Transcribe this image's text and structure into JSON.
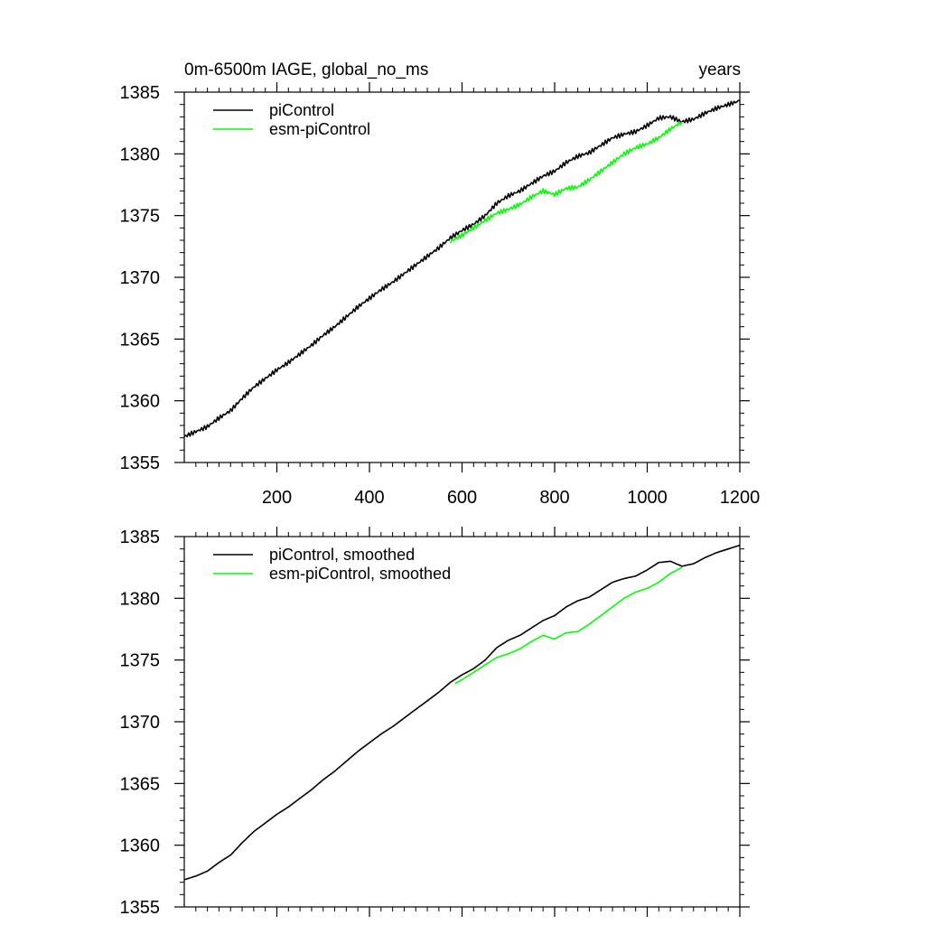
{
  "chart_data": [
    {
      "type": "line",
      "title": "0m-6500m IAGE, global_no_ms",
      "title_right": "years",
      "xlabel": "",
      "ylabel": "",
      "xlim": [
        0,
        1200
      ],
      "ylim": [
        1355,
        1385
      ],
      "x_ticks": [
        200,
        400,
        600,
        800,
        1000,
        1200
      ],
      "y_ticks": [
        1355,
        1360,
        1365,
        1370,
        1375,
        1380,
        1385
      ],
      "grid": false,
      "legend_position": "top-left",
      "series": [
        {
          "name": "piControl",
          "color": "#000000",
          "smoothed": false,
          "x": [
            0,
            25,
            50,
            75,
            100,
            125,
            150,
            175,
            200,
            225,
            250,
            275,
            300,
            325,
            350,
            375,
            400,
            425,
            450,
            475,
            500,
            525,
            550,
            575,
            600,
            625,
            650,
            675,
            700,
            725,
            750,
            775,
            800,
            825,
            850,
            875,
            900,
            925,
            950,
            975,
            1000,
            1025,
            1050,
            1075,
            1100,
            1125,
            1150,
            1175,
            1200
          ],
          "y": [
            1357.1,
            1357.5,
            1357.9,
            1358.6,
            1359.2,
            1360.2,
            1361.1,
            1361.8,
            1362.5,
            1363.1,
            1363.8,
            1364.5,
            1365.3,
            1366.0,
            1366.8,
            1367.6,
            1368.3,
            1369.0,
            1369.6,
            1370.3,
            1371.0,
            1371.7,
            1372.4,
            1373.2,
            1373.8,
            1374.3,
            1375.0,
            1376.0,
            1376.6,
            1377.0,
            1377.6,
            1378.2,
            1378.6,
            1379.3,
            1379.8,
            1380.1,
            1380.7,
            1381.3,
            1381.6,
            1381.8,
            1382.3,
            1382.9,
            1383.0,
            1382.6,
            1382.8,
            1383.3,
            1383.7,
            1384.0,
            1384.3
          ]
        },
        {
          "name": "esm-piControl",
          "color": "#00ff00",
          "smoothed": false,
          "x": [
            575,
            600,
            625,
            650,
            675,
            700,
            725,
            750,
            775,
            800,
            825,
            850,
            875,
            900,
            925,
            950,
            975,
            1000,
            1025,
            1050,
            1075
          ],
          "y": [
            1372.9,
            1373.4,
            1374.0,
            1374.6,
            1375.2,
            1375.5,
            1375.9,
            1376.5,
            1377.0,
            1376.7,
            1377.2,
            1377.3,
            1377.9,
            1378.6,
            1379.3,
            1380.0,
            1380.5,
            1380.8,
            1381.3,
            1382.0,
            1382.6
          ]
        }
      ]
    },
    {
      "type": "line",
      "title": "",
      "xlabel": "",
      "ylabel": "",
      "xlim": [
        0,
        1200
      ],
      "ylim": [
        1355,
        1385
      ],
      "x_ticks": [
        200,
        400,
        600,
        800,
        1000,
        1200
      ],
      "y_ticks": [
        1355,
        1360,
        1365,
        1370,
        1375,
        1380,
        1385
      ],
      "grid": false,
      "legend_position": "top-left",
      "series": [
        {
          "name": "piControl, smoothed",
          "color": "#000000",
          "smoothed": true,
          "x": [
            0,
            25,
            50,
            75,
            100,
            125,
            150,
            175,
            200,
            225,
            250,
            275,
            300,
            325,
            350,
            375,
            400,
            425,
            450,
            475,
            500,
            525,
            550,
            575,
            600,
            625,
            650,
            675,
            700,
            725,
            750,
            775,
            800,
            825,
            850,
            875,
            900,
            925,
            950,
            975,
            1000,
            1025,
            1050,
            1075,
            1100,
            1125,
            1150,
            1175,
            1200
          ],
          "y": [
            1357.2,
            1357.5,
            1357.9,
            1358.6,
            1359.2,
            1360.2,
            1361.1,
            1361.8,
            1362.5,
            1363.1,
            1363.8,
            1364.5,
            1365.3,
            1366.0,
            1366.8,
            1367.6,
            1368.3,
            1369.0,
            1369.6,
            1370.3,
            1371.0,
            1371.7,
            1372.4,
            1373.2,
            1373.8,
            1374.3,
            1375.0,
            1376.0,
            1376.6,
            1377.0,
            1377.6,
            1378.2,
            1378.6,
            1379.3,
            1379.8,
            1380.1,
            1380.7,
            1381.3,
            1381.6,
            1381.8,
            1382.3,
            1382.9,
            1383.0,
            1382.6,
            1382.8,
            1383.3,
            1383.7,
            1384.0,
            1384.3
          ]
        },
        {
          "name": "esm-piControl, smoothed",
          "color": "#00ff00",
          "smoothed": true,
          "x": [
            585,
            600,
            625,
            650,
            675,
            700,
            725,
            750,
            775,
            800,
            825,
            850,
            875,
            900,
            925,
            950,
            975,
            1000,
            1025,
            1050,
            1075
          ],
          "y": [
            1373.1,
            1373.4,
            1374.0,
            1374.6,
            1375.2,
            1375.5,
            1375.9,
            1376.5,
            1377.0,
            1376.7,
            1377.2,
            1377.3,
            1377.9,
            1378.6,
            1379.3,
            1380.0,
            1380.5,
            1380.8,
            1381.3,
            1382.0,
            1382.5
          ]
        }
      ]
    }
  ]
}
